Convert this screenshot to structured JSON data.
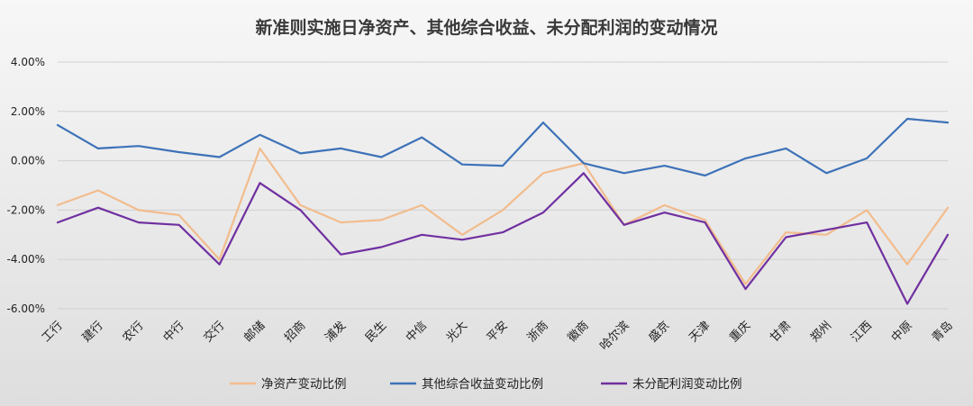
{
  "chart_data": {
    "type": "line",
    "title": "新准则实施日净资产、其他综合收益、未分配利润的变动情况",
    "categories": [
      "工行",
      "建行",
      "农行",
      "中行",
      "交行",
      "邮储",
      "招商",
      "浦发",
      "民生",
      "中信",
      "光大",
      "平安",
      "浙商",
      "徽商",
      "哈尔滨",
      "盛京",
      "天津",
      "重庆",
      "甘肃",
      "郑州",
      "江西",
      "中原",
      "青岛"
    ],
    "y_ticks": [
      "4.00%",
      "2.00%",
      "0.00%",
      "-2.00%",
      "-4.00%",
      "-6.00%"
    ],
    "ylim": [
      -6,
      4
    ],
    "y_unit": "%",
    "grid": true,
    "legend_position": "bottom",
    "series": [
      {
        "name": "净资产变动比例",
        "color": "#f2bc8d",
        "values": [
          -1.8,
          -1.2,
          -2.0,
          -2.2,
          -4.0,
          0.5,
          -1.8,
          -2.5,
          -2.4,
          -1.8,
          -3.0,
          -2.0,
          -0.5,
          -0.1,
          -2.6,
          -1.8,
          -2.4,
          -5.0,
          -2.9,
          -3.0,
          -2.0,
          -4.2,
          -1.9
        ]
      },
      {
        "name": "其他综合收益变动比例",
        "color": "#3d72b8",
        "values": [
          1.45,
          0.5,
          0.6,
          0.35,
          0.15,
          1.05,
          0.3,
          0.5,
          0.15,
          0.95,
          -0.15,
          -0.2,
          1.55,
          -0.1,
          -0.5,
          -0.2,
          -0.6,
          0.1,
          0.5,
          -0.5,
          0.1,
          1.7,
          1.55
        ]
      },
      {
        "name": "未分配利润变动比例",
        "color": "#7030a0",
        "values": [
          -2.5,
          -1.9,
          -2.5,
          -2.6,
          -4.2,
          -0.9,
          -2.0,
          -3.8,
          -3.5,
          -3.0,
          -3.2,
          -2.9,
          -2.1,
          -0.5,
          -2.6,
          -2.1,
          -2.5,
          -5.2,
          -3.1,
          -2.8,
          -2.5,
          -5.8,
          -3.0
        ]
      }
    ]
  }
}
